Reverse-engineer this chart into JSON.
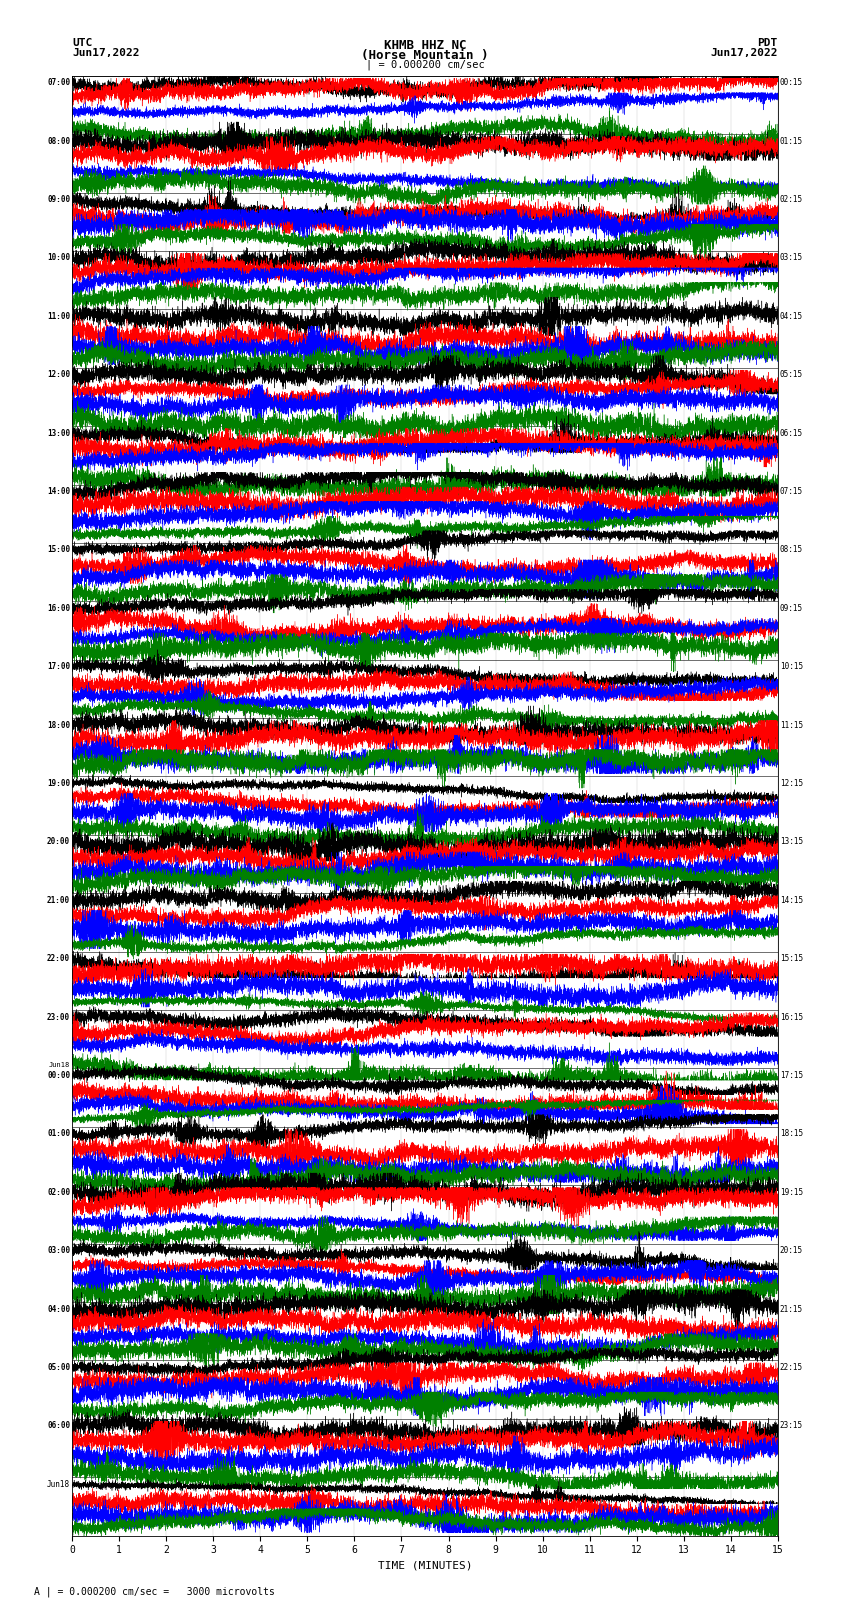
{
  "title_line1": "KHMB HHZ NC",
  "title_line2": "(Horse Mountain )",
  "scale_bar_label": "| = 0.000200 cm/sec",
  "bottom_label": "A | = 0.000200 cm/sec =   3000 microvolts",
  "xlabel": "TIME (MINUTES)",
  "utc_label": "UTC",
  "pdt_label": "PDT",
  "date_left": "Jun17,2022",
  "date_right": "Jun17,2022",
  "bg_color": "#ffffff",
  "trace_colors": [
    "#000000",
    "#ff0000",
    "#0000ff",
    "#008000"
  ],
  "left_times_utc": [
    "07:00",
    "08:00",
    "09:00",
    "10:00",
    "11:00",
    "12:00",
    "13:00",
    "14:00",
    "15:00",
    "16:00",
    "17:00",
    "18:00",
    "19:00",
    "20:00",
    "21:00",
    "22:00",
    "23:00",
    "Jun18\n00:00",
    "01:00",
    "02:00",
    "03:00",
    "04:00",
    "05:00",
    "06:00",
    "Jun18"
  ],
  "right_times_pdt": [
    "00:15",
    "01:15",
    "02:15",
    "03:15",
    "04:15",
    "05:15",
    "06:15",
    "07:15",
    "08:15",
    "09:15",
    "10:15",
    "11:15",
    "12:15",
    "13:15",
    "14:15",
    "15:15",
    "16:15",
    "17:15",
    "18:15",
    "19:15",
    "20:15",
    "21:15",
    "22:15",
    "23:15",
    "",
    ""
  ],
  "n_rows": 25,
  "traces_per_row": 4,
  "x_ticks": [
    0,
    1,
    2,
    3,
    4,
    5,
    6,
    7,
    8,
    9,
    10,
    11,
    12,
    13,
    14,
    15
  ],
  "seed": 42
}
